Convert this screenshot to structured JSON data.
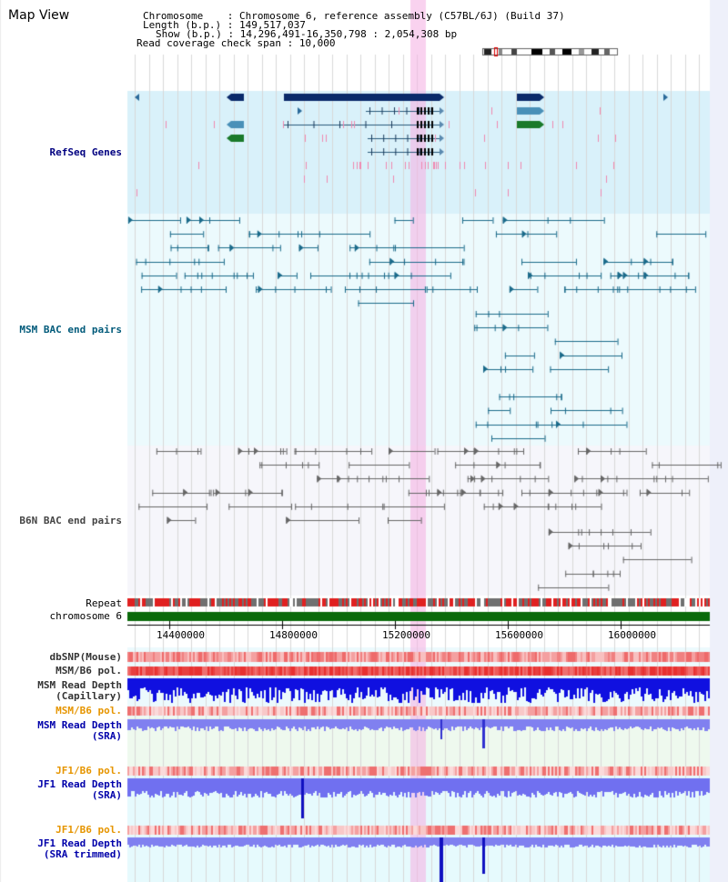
{
  "page": {
    "title": "Map View"
  },
  "header": {
    "chromosome_label": "Chromosome    : ",
    "chromosome_value": "Chromosome 6, reference assembly (C57BL/6J) (Build 37)",
    "length_label": "Length (b.p.) : ",
    "length_value": "149,517,037",
    "show_label": "Show (b.p.) : ",
    "show_value": "14,296,491-16,350,798 : 2,054,308 bp",
    "coverage_label": "Read coverage check span : ",
    "coverage_value": "10,000"
  },
  "tracks": {
    "refseq": "RefSeq Genes",
    "msm_bac": "MSM BAC end pairs",
    "b6n_bac": "B6N BAC end pairs",
    "repeat": "Repeat",
    "chromosome": "chromosome 6",
    "dbsnp": "dbSNP(Mouse)",
    "msm_b6_pol_1": "MSM/B6 pol.",
    "msm_read_depth_cap_1": "MSM Read Depth",
    "msm_read_depth_cap_2": "(Capillary)",
    "msm_b6_pol_2": "MSM/B6 pol.",
    "msm_read_depth_sra_1": "MSM Read Depth",
    "msm_read_depth_sra_2": "(SRA)",
    "jf1_b6_pol_1": "JF1/B6 pol.",
    "jf1_read_depth_sra_1": "JF1 Read Depth",
    "jf1_read_depth_sra_2": "(SRA)",
    "jf1_b6_pol_2": "JF1/B6 pol.",
    "jf1_read_depth_trim_1": "JF1 Read Depth",
    "jf1_read_depth_trim_2": "(SRA trimmed)"
  },
  "axis": {
    "ticks": [
      "14400000",
      "14800000",
      "15200000",
      "15600000",
      "16000000"
    ]
  },
  "colors": {
    "refseq_label": "#000080",
    "msm_label": "#005a7a",
    "b6n_label": "#444444",
    "orange_label": "#e69500",
    "blue_label": "#0000aa",
    "highlight": "#f7c8e8"
  }
}
